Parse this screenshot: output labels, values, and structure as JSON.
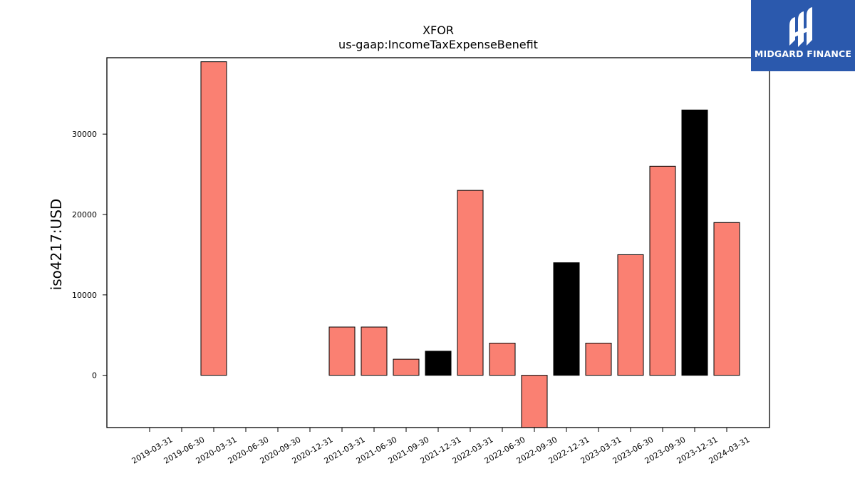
{
  "chart_data": {
    "type": "bar",
    "title": "XFOR",
    "subtitle": "us-gaap:IncomeTaxExpenseBenefit",
    "xlabel": "",
    "ylabel": "iso4217:USD",
    "categories": [
      "2019-03-31",
      "2019-06-30",
      "2020-03-31",
      "2020-06-30",
      "2020-09-30",
      "2020-12-31",
      "2021-03-31",
      "2021-06-30",
      "2021-09-30",
      "2021-12-31",
      "2022-03-31",
      "2022-06-30",
      "2022-09-30",
      "2022-12-31",
      "2023-03-31",
      "2023-06-30",
      "2023-09-30",
      "2023-12-31",
      "2024-03-31"
    ],
    "values": [
      0,
      0,
      39000,
      0,
      0,
      0,
      6000,
      6000,
      2000,
      3000,
      23000,
      4000,
      -7000,
      14000,
      4000,
      15000,
      26000,
      33000,
      19000
    ],
    "bar_colors": [
      "#fa8072",
      "#fa8072",
      "#fa8072",
      "#fa8072",
      "#fa8072",
      "#fa8072",
      "#fa8072",
      "#fa8072",
      "#fa8072",
      "#000000",
      "#fa8072",
      "#fa8072",
      "#fa8072",
      "#000000",
      "#fa8072",
      "#fa8072",
      "#fa8072",
      "#000000",
      "#fa8072"
    ],
    "ylim": [
      -6500,
      39500
    ],
    "yticks": [
      0,
      10000,
      20000,
      30000
    ],
    "ytick_labels": [
      "0",
      "10000",
      "20000",
      "30000"
    ],
    "grid": false,
    "legend": "none"
  },
  "logo": {
    "text": "MIDGARD FINANCE",
    "color": "#2b59ad"
  }
}
